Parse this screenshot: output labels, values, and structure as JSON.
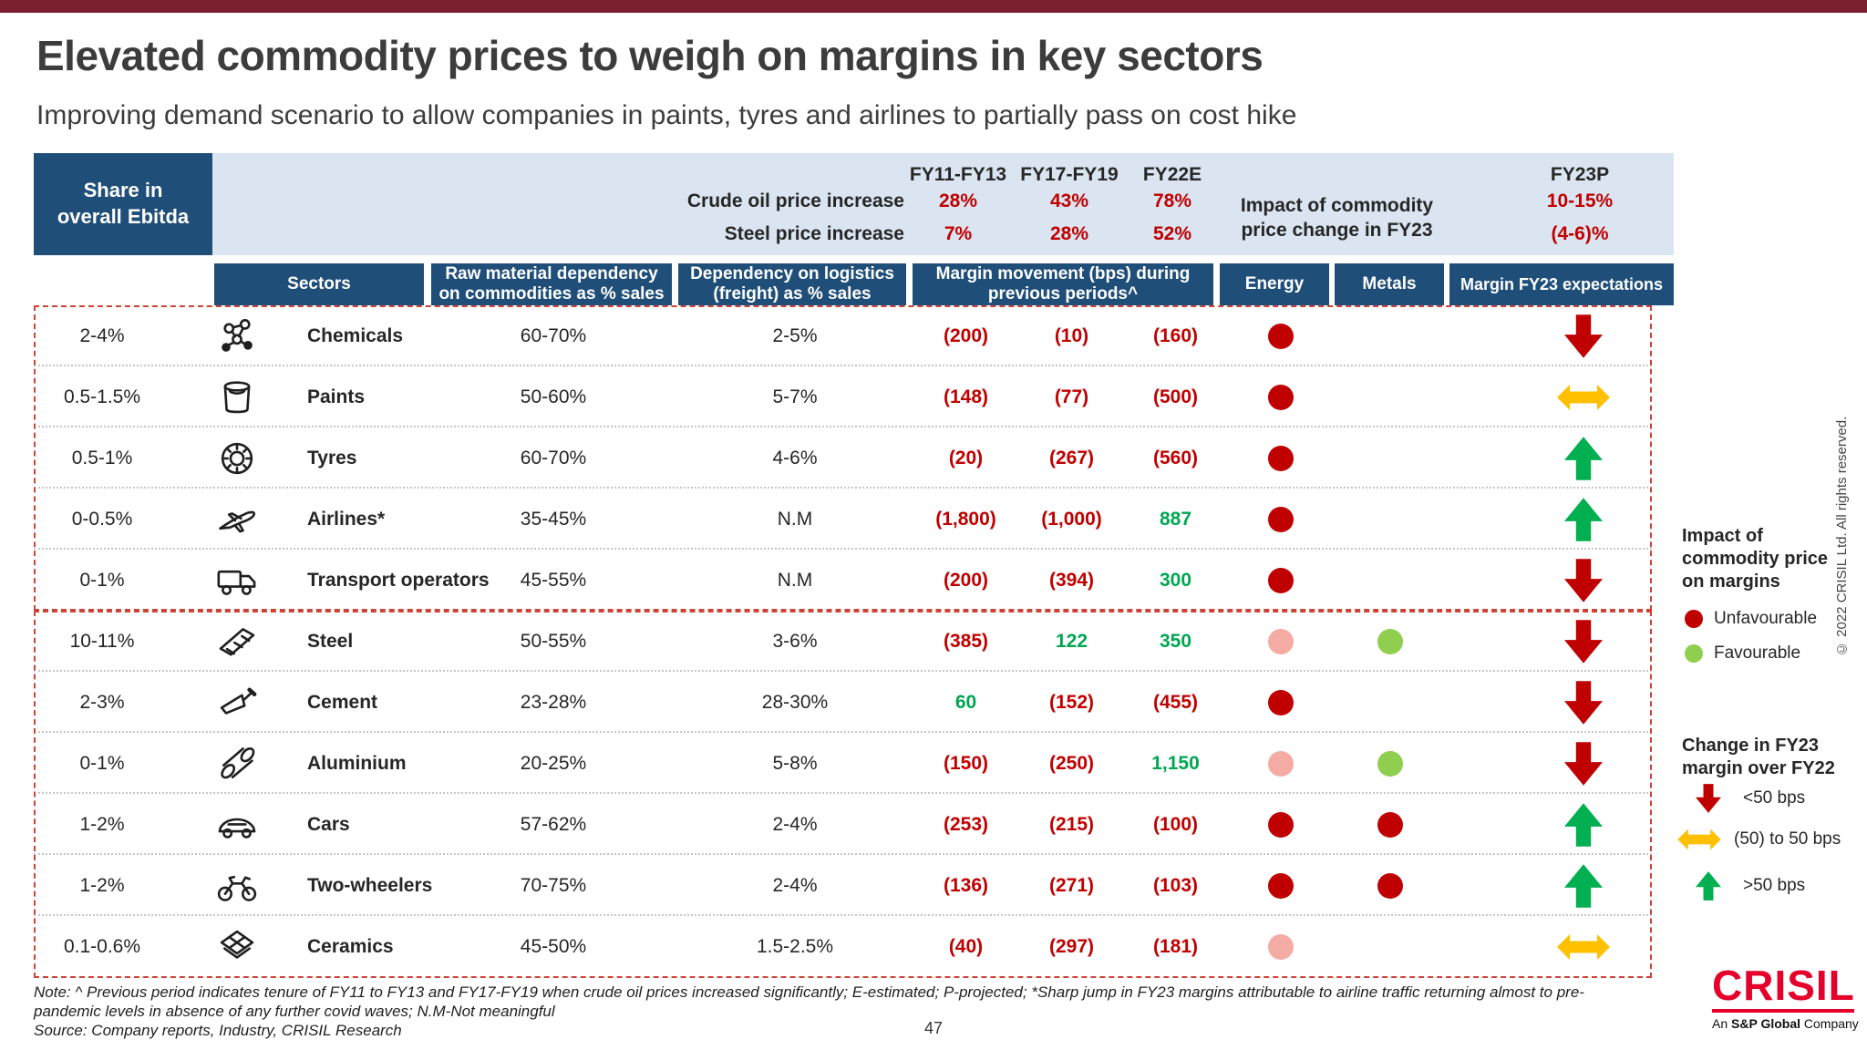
{
  "slide": {
    "title": "Elevated commodity prices to weigh on margins in key sectors",
    "subtitle": "Improving demand scenario to allow companies in paints, tyres and airlines to partially pass on cost hike",
    "page_number": "47"
  },
  "price_header": {
    "share_label": "Share in overall Ebitda",
    "periods": [
      "FY11-FY13",
      "FY17-FY19",
      "FY22E"
    ],
    "fy23p": "FY23P",
    "crude": {
      "label": "Crude oil price increase",
      "fy11_fy13": "28%",
      "fy17_fy19": "43%",
      "fy22e": "78%",
      "fy23p": "10-15%"
    },
    "steel": {
      "label": "Steel price increase",
      "fy11_fy13": "7%",
      "fy17_fy19": "28%",
      "fy22e": "52%",
      "fy23p": "(4-6)%"
    },
    "impact_label": "Impact of commodity price change in FY23"
  },
  "column_headers": {
    "sectors": "Sectors",
    "raw_material": "Raw material dependency on commodities as % sales",
    "logistics": "Dependency on logistics (freight) as % sales",
    "margin_movement": "Margin movement (bps) during previous periods^",
    "energy": "Energy",
    "metals": "Metals",
    "margin_fy23": "Margin FY23 expectations"
  },
  "sectors": [
    {
      "share": "2-4%",
      "icon": "chemicals-icon",
      "name": "Chemicals",
      "raw_material": "60-70%",
      "logistics": "2-5%",
      "margin_fy11_fy13": "(200)",
      "margin_fy17_fy19": "(10)",
      "margin_fy22e": "(160)",
      "energy_impact": "unfavourable",
      "metals_impact": "none",
      "fy23_outlook": "down"
    },
    {
      "share": "0.5-1.5%",
      "icon": "paints-icon",
      "name": "Paints",
      "raw_material": "50-60%",
      "logistics": "5-7%",
      "margin_fy11_fy13": "(148)",
      "margin_fy17_fy19": "(77)",
      "margin_fy22e": "(500)",
      "energy_impact": "unfavourable",
      "metals_impact": "none",
      "fy23_outlook": "neutral"
    },
    {
      "share": "0.5-1%",
      "icon": "tyres-icon",
      "name": "Tyres",
      "raw_material": "60-70%",
      "logistics": "4-6%",
      "margin_fy11_fy13": "(20)",
      "margin_fy17_fy19": "(267)",
      "margin_fy22e": "(560)",
      "energy_impact": "unfavourable",
      "metals_impact": "none",
      "fy23_outlook": "up"
    },
    {
      "share": "0-0.5%",
      "icon": "airplane-icon",
      "name": "Airlines*",
      "raw_material": "35-45%",
      "logistics": "N.M",
      "margin_fy11_fy13": "(1,800)",
      "margin_fy17_fy19": "(1,000)",
      "margin_fy22e": "887",
      "energy_impact": "unfavourable",
      "metals_impact": "none",
      "fy23_outlook": "up"
    },
    {
      "share": "0-1%",
      "icon": "truck-icon",
      "name": "Transport operators",
      "raw_material": "45-55%",
      "logistics": "N.M",
      "margin_fy11_fy13": "(200)",
      "margin_fy17_fy19": "(394)",
      "margin_fy22e": "300",
      "energy_impact": "unfavourable",
      "metals_impact": "none",
      "fy23_outlook": "down"
    },
    {
      "share": "10-11%",
      "icon": "steel-icon",
      "name": "Steel",
      "raw_material": "50-55%",
      "logistics": "3-6%",
      "margin_fy11_fy13": "(385)",
      "margin_fy17_fy19": "122",
      "margin_fy22e": "350",
      "energy_impact": "mild",
      "metals_impact": "favourable",
      "fy23_outlook": "down"
    },
    {
      "share": "2-3%",
      "icon": "cement-icon",
      "name": "Cement",
      "raw_material": "23-28%",
      "logistics": "28-30%",
      "margin_fy11_fy13": "60",
      "margin_fy17_fy19": "(152)",
      "margin_fy22e": "(455)",
      "energy_impact": "unfavourable",
      "metals_impact": "none",
      "fy23_outlook": "down"
    },
    {
      "share": "0-1%",
      "icon": "aluminium-icon",
      "name": "Aluminium",
      "raw_material": "20-25%",
      "logistics": "5-8%",
      "margin_fy11_fy13": "(150)",
      "margin_fy17_fy19": "(250)",
      "margin_fy22e": "1,150",
      "energy_impact": "mild",
      "metals_impact": "favourable",
      "fy23_outlook": "down"
    },
    {
      "share": "1-2%",
      "icon": "car-icon",
      "name": "Cars",
      "raw_material": "57-62%",
      "logistics": "2-4%",
      "margin_fy11_fy13": "(253)",
      "margin_fy17_fy19": "(215)",
      "margin_fy22e": "(100)",
      "energy_impact": "unfavourable",
      "metals_impact": "unfavourable",
      "fy23_outlook": "up"
    },
    {
      "share": "1-2%",
      "icon": "motorcycle-icon",
      "name": "Two-wheelers",
      "raw_material": "70-75%",
      "logistics": "2-4%",
      "margin_fy11_fy13": "(136)",
      "margin_fy17_fy19": "(271)",
      "margin_fy22e": "(103)",
      "energy_impact": "unfavourable",
      "metals_impact": "unfavourable",
      "fy23_outlook": "up"
    },
    {
      "share": "0.1-0.6%",
      "icon": "ceramics-icon",
      "name": "Ceramics",
      "raw_material": "45-50%",
      "logistics": "1.5-2.5%",
      "margin_fy11_fy13": "(40)",
      "margin_fy17_fy19": "(297)",
      "margin_fy22e": "(181)",
      "energy_impact": "mild",
      "metals_impact": "none",
      "fy23_outlook": "neutral"
    }
  ],
  "legend": {
    "impact_title": "Impact of commodity price on margins",
    "impact_items": [
      {
        "dot": "unfavourable",
        "label": "Unfavourable"
      },
      {
        "dot": "favourable",
        "label": "Favourable"
      }
    ],
    "change_title": "Change in FY23 margin over FY22",
    "change_items": [
      {
        "arrow": "down",
        "label": "<50 bps"
      },
      {
        "arrow": "neutral",
        "label": "(50) to 50 bps"
      },
      {
        "arrow": "up",
        "label": ">50 bps"
      }
    ]
  },
  "footer": {
    "note": "Note: ^ Previous period indicates tenure of FY11 to FY13 and FY17-FY19 when crude oil prices increased significantly; E-estimated; P-projected; *Sharp jump in FY23 margins attributable to airline traffic returning almost to pre-pandemic levels in absence of any further covid waves; N.M-Not meaningful",
    "source": "Source: Company reports, Industry, CRISIL Research",
    "copyright": "© 2022 CRISIL Ltd. All rights reserved.",
    "logo_text": "CRISIL",
    "logo_tagline_prefix": "An ",
    "logo_tagline_bold": "S&P Global",
    "logo_tagline_suffix": " Company"
  },
  "colors": {
    "accent_maroon": "#7A1F2E",
    "header_blue": "#1F4E79",
    "band_blue": "#DBE5F1",
    "negative_red": "#C00000",
    "positive_green": "#00A651",
    "dot_red": "#C00000",
    "dot_pink": "#F4ABA3",
    "dot_green": "#8FCE4E",
    "arrow_yellow": "#FFC000",
    "crisil_red": "#E4002B"
  }
}
